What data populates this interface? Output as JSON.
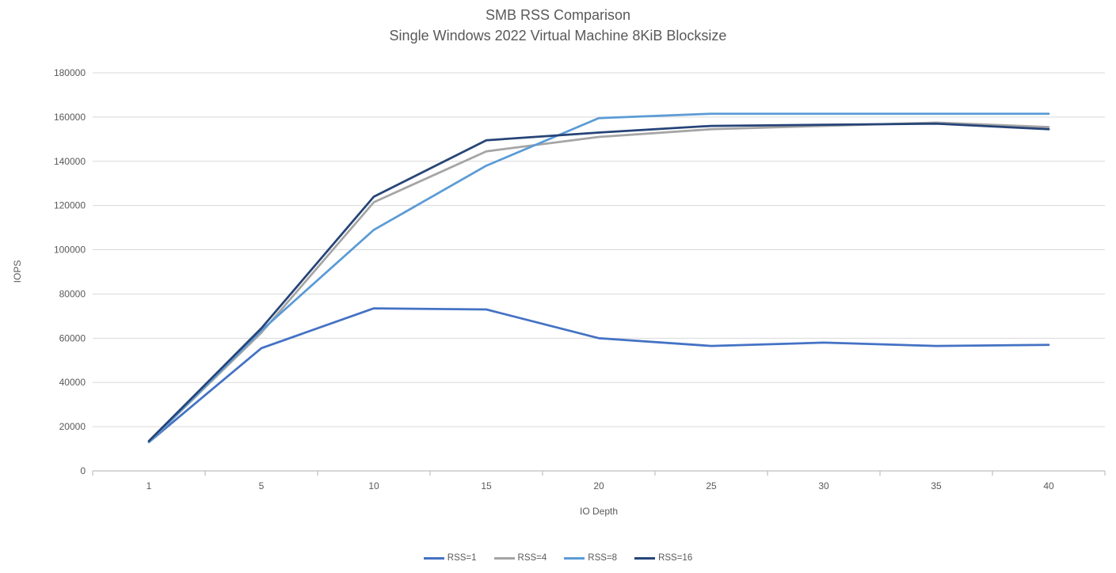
{
  "page": {
    "background": "#ffffff",
    "text_color": "#595959",
    "grid_color": "#D9D9D9",
    "axis_line_color": "#BFBFBF"
  },
  "chart_data": {
    "type": "line",
    "title": "SMB RSS Comparison",
    "subtitle": "Single Windows 2022 Virtual Machine 8KiB Blocksize",
    "xlabel": "IO Depth",
    "ylabel": "IOPS",
    "categories": [
      1,
      5,
      10,
      15,
      20,
      25,
      30,
      35,
      40
    ],
    "y_ticks": [
      0,
      20000,
      40000,
      60000,
      80000,
      100000,
      120000,
      140000,
      160000,
      180000
    ],
    "ylim": [
      0,
      180000
    ],
    "grid": "horizontal",
    "legend_position": "bottom",
    "series": [
      {
        "name": "RSS=1",
        "color": "#4472C4",
        "values": [
          13000,
          55500,
          73500,
          73000,
          60000,
          56500,
          58000,
          56500,
          57000
        ]
      },
      {
        "name": "RSS=4",
        "color": "#A5A5A5",
        "values": [
          13000,
          62500,
          121500,
          144500,
          151000,
          154500,
          156000,
          157500,
          155500
        ]
      },
      {
        "name": "RSS=8",
        "color": "#5B9BD5",
        "values": [
          13000,
          63500,
          109000,
          138000,
          159500,
          161500,
          161500,
          161500,
          161500
        ]
      },
      {
        "name": "RSS=16",
        "color": "#264478",
        "values": [
          13500,
          64500,
          124000,
          149500,
          153000,
          156000,
          156500,
          157000,
          154500
        ]
      }
    ]
  }
}
